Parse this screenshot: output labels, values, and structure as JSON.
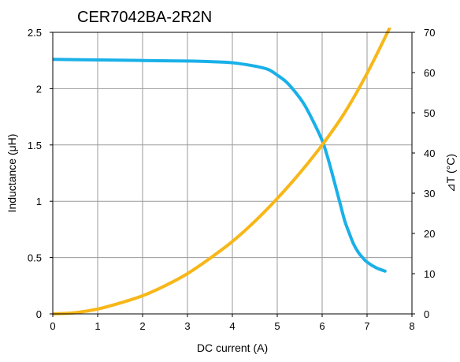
{
  "chart_data": {
    "type": "line",
    "title": "CER7042BA-2R2N",
    "xlabel": "DC current (A)",
    "ylabel": "Inductance (μH)",
    "y2label": "⊿T (°C)",
    "xlim": [
      0,
      8
    ],
    "ylim": [
      0,
      2.5
    ],
    "y2lim": [
      0,
      70
    ],
    "x_ticks": [
      "0",
      "1",
      "2",
      "3",
      "4",
      "5",
      "6",
      "7",
      "8"
    ],
    "y_ticks": [
      "0",
      "0.5",
      "1",
      "1.5",
      "2",
      "2.5"
    ],
    "y2_ticks": [
      "0",
      "10",
      "20",
      "30",
      "40",
      "50",
      "60",
      "70"
    ],
    "grid": true,
    "series": [
      {
        "axis": "left",
        "color": "#1ab0e8",
        "x": [
          0,
          1,
          2,
          3,
          3.5,
          4,
          4.5,
          4.8,
          5,
          5.2,
          5.4,
          5.6,
          5.8,
          6,
          6.1,
          6.2,
          6.3,
          6.4,
          6.5,
          6.6,
          6.7,
          6.8,
          6.9,
          7.0,
          7.2,
          7.4
        ],
        "values": [
          2.26,
          2.255,
          2.25,
          2.245,
          2.24,
          2.23,
          2.2,
          2.17,
          2.12,
          2.06,
          1.97,
          1.86,
          1.71,
          1.54,
          1.42,
          1.28,
          1.13,
          0.98,
          0.83,
          0.72,
          0.62,
          0.55,
          0.5,
          0.46,
          0.41,
          0.38
        ]
      },
      {
        "axis": "right",
        "color": "#f7b718",
        "x": [
          0,
          0.5,
          1,
          1.5,
          2,
          2.5,
          3,
          3.5,
          4,
          4.5,
          5,
          5.5,
          6,
          6.5,
          7,
          7.5
        ],
        "values": [
          0,
          0.3,
          1.2,
          2.7,
          4.5,
          7.0,
          10.0,
          13.8,
          18.0,
          23.0,
          28.7,
          35.0,
          42.0,
          50.0,
          59.8,
          71.0
        ]
      }
    ]
  }
}
